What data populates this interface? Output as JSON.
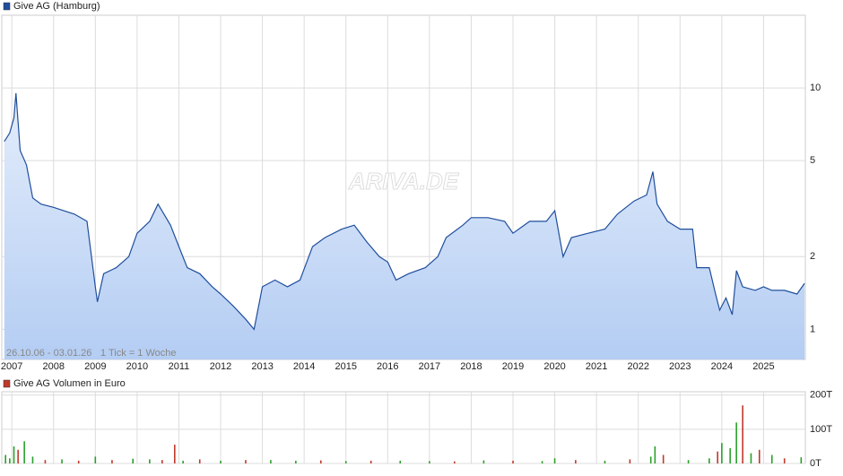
{
  "chart_data": [
    {
      "type": "line",
      "legend": "Give AG (Hamburg)",
      "color": "#1f4e9c",
      "log_scale": true,
      "grid": true,
      "watermark": "ARIVA.DE",
      "range_label": "26.10.06 - 03.01.26",
      "tick_label": "1 Tick = 1 Woche",
      "xlim": [
        2006.76,
        2026
      ],
      "ylim": [
        0.75,
        20
      ],
      "xticks": [
        2007,
        2008,
        2009,
        2010,
        2011,
        2012,
        2013,
        2014,
        2015,
        2016,
        2017,
        2018,
        2019,
        2020,
        2021,
        2022,
        2023,
        2024,
        2025
      ],
      "yticks": [
        1,
        2,
        5,
        10
      ],
      "x": [
        2006.82,
        2006.95,
        2007.05,
        2007.1,
        2007.2,
        2007.35,
        2007.5,
        2007.7,
        2008.0,
        2008.5,
        2008.8,
        2009.0,
        2009.05,
        2009.2,
        2009.5,
        2009.8,
        2010.0,
        2010.3,
        2010.5,
        2010.8,
        2011.0,
        2011.2,
        2011.5,
        2011.8,
        2012.0,
        2012.3,
        2012.6,
        2012.8,
        2013.0,
        2013.3,
        2013.6,
        2013.9,
        2014.2,
        2014.5,
        2014.9,
        2015.2,
        2015.5,
        2015.8,
        2016.0,
        2016.2,
        2016.5,
        2016.9,
        2017.2,
        2017.4,
        2017.8,
        2018.0,
        2018.4,
        2018.8,
        2019.0,
        2019.4,
        2019.8,
        2020.0,
        2020.2,
        2020.4,
        2020.8,
        2021.2,
        2021.5,
        2021.9,
        2022.2,
        2022.35,
        2022.45,
        2022.7,
        2023.0,
        2023.3,
        2023.4,
        2023.7,
        2023.85,
        2023.95,
        2024.1,
        2024.25,
        2024.35,
        2024.5,
        2024.8,
        2025.0,
        2025.2,
        2025.5,
        2025.8,
        2025.98
      ],
      "values": [
        6.0,
        6.5,
        7.5,
        9.5,
        5.5,
        4.8,
        3.5,
        3.3,
        3.2,
        3.0,
        2.8,
        1.5,
        1.3,
        1.7,
        1.8,
        2.0,
        2.5,
        2.8,
        3.3,
        2.7,
        2.2,
        1.8,
        1.7,
        1.5,
        1.4,
        1.25,
        1.1,
        1.0,
        1.5,
        1.6,
        1.5,
        1.6,
        2.2,
        2.4,
        2.6,
        2.7,
        2.3,
        2.0,
        1.9,
        1.6,
        1.7,
        1.8,
        2.0,
        2.4,
        2.7,
        2.9,
        2.9,
        2.8,
        2.5,
        2.8,
        2.8,
        3.1,
        2.0,
        2.4,
        2.5,
        2.6,
        3.0,
        3.4,
        3.6,
        4.5,
        3.3,
        2.8,
        2.6,
        2.6,
        1.8,
        1.8,
        1.4,
        1.2,
        1.35,
        1.15,
        1.75,
        1.5,
        1.45,
        1.5,
        1.45,
        1.45,
        1.4,
        1.55
      ]
    },
    {
      "type": "bar",
      "legend": "Give AG Volumen in Euro",
      "color": "#c0392b",
      "grid": true,
      "xlim": [
        2006.76,
        2026
      ],
      "ylim": [
        0,
        210
      ],
      "yticks": [
        {
          "value": 0,
          "label": "0T"
        },
        {
          "value": 100,
          "label": "100T"
        },
        {
          "value": 200,
          "label": "200T"
        }
      ],
      "x": [
        2006.85,
        2006.95,
        2007.05,
        2007.15,
        2007.3,
        2007.5,
        2007.8,
        2008.2,
        2008.6,
        2009.0,
        2009.4,
        2009.9,
        2010.3,
        2010.6,
        2010.9,
        2011.1,
        2011.5,
        2012.0,
        2012.6,
        2013.2,
        2013.8,
        2014.4,
        2015.0,
        2015.6,
        2016.3,
        2017.0,
        2017.6,
        2018.3,
        2019.0,
        2019.7,
        2020.0,
        2020.5,
        2021.2,
        2021.8,
        2022.3,
        2022.4,
        2022.6,
        2023.2,
        2023.7,
        2023.9,
        2024.0,
        2024.2,
        2024.35,
        2024.5,
        2024.7,
        2024.9,
        2025.2,
        2025.5,
        2025.9
      ],
      "values": [
        25,
        15,
        50,
        40,
        65,
        20,
        10,
        12,
        8,
        20,
        10,
        14,
        12,
        10,
        55,
        8,
        12,
        8,
        10,
        10,
        8,
        9,
        7,
        8,
        8,
        7,
        6,
        9,
        8,
        7,
        15,
        10,
        8,
        12,
        20,
        50,
        25,
        10,
        15,
        35,
        60,
        45,
        120,
        170,
        30,
        40,
        25,
        15,
        18
      ],
      "bar_colors": [
        "#2aa02a",
        "#2aa02a",
        "#2aa02a",
        "#c0392b",
        "#2aa02a",
        "#2aa02a",
        "#c0392b",
        "#2aa02a",
        "#c0392b",
        "#2aa02a",
        "#c0392b",
        "#2aa02a",
        "#2aa02a",
        "#c0392b",
        "#c0392b",
        "#2aa02a",
        "#c0392b",
        "#2aa02a",
        "#c0392b",
        "#2aa02a",
        "#2aa02a",
        "#c0392b",
        "#2aa02a",
        "#c0392b",
        "#2aa02a",
        "#2aa02a",
        "#c0392b",
        "#2aa02a",
        "#c0392b",
        "#2aa02a",
        "#2aa02a",
        "#c0392b",
        "#2aa02a",
        "#c0392b",
        "#2aa02a",
        "#2aa02a",
        "#c0392b",
        "#2aa02a",
        "#2aa02a",
        "#c0392b",
        "#2aa02a",
        "#2aa02a",
        "#2aa02a",
        "#c0392b",
        "#2aa02a",
        "#c0392b",
        "#2aa02a",
        "#c0392b",
        "#2aa02a"
      ]
    }
  ]
}
